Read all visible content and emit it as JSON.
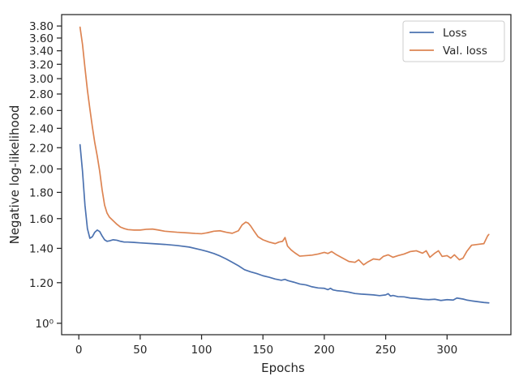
{
  "chart_data": {
    "type": "line",
    "title": "",
    "xlabel": "Epochs",
    "ylabel": "Negative log-likelihood",
    "xlim": [
      -14,
      352
    ],
    "ylim": [
      0.95,
      4.0
    ],
    "yscale": "log",
    "grid": false,
    "legend_position": "top-right",
    "x_ticks": [
      0,
      50,
      100,
      150,
      200,
      250,
      300
    ],
    "x_tick_labels": [
      "0",
      "50",
      "100",
      "150",
      "200",
      "250",
      "300"
    ],
    "y_ticks": [
      1.0,
      1.2,
      1.4,
      1.6,
      1.8,
      2.0,
      2.2,
      2.4,
      2.6,
      2.8,
      3.0,
      3.2,
      3.4,
      3.6,
      3.8
    ],
    "y_tick_labels": [
      "10⁰",
      "1.20",
      "1.40",
      "1.60",
      "1.80",
      "2.00",
      "2.20",
      "2.40",
      "2.60",
      "2.80",
      "3.00",
      "3.20",
      "3.40",
      "3.60",
      "3.80"
    ],
    "series": [
      {
        "name": "Loss",
        "color": "#4c72b0",
        "x": [
          1,
          3,
          5,
          7,
          9,
          11,
          13,
          15,
          17,
          19,
          21,
          23,
          25,
          28,
          31,
          34,
          37,
          40,
          45,
          50,
          60,
          70,
          80,
          90,
          100,
          105,
          110,
          115,
          120,
          125,
          130,
          135,
          140,
          145,
          150,
          155,
          160,
          165,
          168,
          170,
          172,
          175,
          180,
          185,
          190,
          195,
          200,
          203,
          205,
          207,
          210,
          215,
          220,
          225,
          230,
          235,
          240,
          245,
          250,
          252,
          254,
          256,
          260,
          265,
          270,
          275,
          280,
          285,
          290,
          295,
          300,
          305,
          308,
          310,
          313,
          316,
          320,
          325,
          330,
          334
        ],
        "y": [
          2.23,
          1.98,
          1.7,
          1.53,
          1.465,
          1.475,
          1.505,
          1.52,
          1.51,
          1.48,
          1.455,
          1.445,
          1.448,
          1.455,
          1.452,
          1.445,
          1.44,
          1.44,
          1.438,
          1.435,
          1.43,
          1.425,
          1.418,
          1.408,
          1.39,
          1.38,
          1.368,
          1.353,
          1.335,
          1.315,
          1.295,
          1.272,
          1.26,
          1.25,
          1.238,
          1.23,
          1.22,
          1.213,
          1.218,
          1.212,
          1.208,
          1.203,
          1.193,
          1.188,
          1.178,
          1.172,
          1.17,
          1.163,
          1.17,
          1.162,
          1.158,
          1.155,
          1.15,
          1.143,
          1.14,
          1.138,
          1.136,
          1.132,
          1.136,
          1.142,
          1.13,
          1.133,
          1.127,
          1.126,
          1.12,
          1.118,
          1.114,
          1.112,
          1.114,
          1.108,
          1.112,
          1.11,
          1.12,
          1.118,
          1.115,
          1.11,
          1.106,
          1.102,
          1.098,
          1.096
        ]
      },
      {
        "name": "Val. loss",
        "color": "#dd8452",
        "x": [
          1,
          3,
          5,
          7,
          9,
          11,
          13,
          15,
          17,
          19,
          21,
          23,
          25,
          28,
          31,
          34,
          37,
          40,
          45,
          50,
          55,
          60,
          65,
          70,
          80,
          90,
          95,
          100,
          105,
          110,
          115,
          120,
          125,
          130,
          133,
          136,
          138,
          140,
          143,
          146,
          150,
          155,
          160,
          163,
          166,
          168,
          170,
          173,
          176,
          180,
          185,
          190,
          195,
          200,
          203,
          206,
          210,
          215,
          220,
          225,
          228,
          232,
          235,
          240,
          245,
          248,
          252,
          256,
          260,
          265,
          270,
          275,
          280,
          283,
          286,
          290,
          293,
          296,
          300,
          303,
          306,
          310,
          313,
          316,
          320,
          325,
          330,
          333,
          334
        ],
        "y": [
          3.78,
          3.5,
          3.15,
          2.85,
          2.62,
          2.42,
          2.25,
          2.12,
          1.98,
          1.82,
          1.7,
          1.64,
          1.61,
          1.585,
          1.56,
          1.54,
          1.53,
          1.523,
          1.52,
          1.52,
          1.525,
          1.527,
          1.52,
          1.512,
          1.505,
          1.5,
          1.497,
          1.495,
          1.502,
          1.512,
          1.515,
          1.505,
          1.498,
          1.515,
          1.555,
          1.575,
          1.568,
          1.548,
          1.51,
          1.475,
          1.455,
          1.44,
          1.43,
          1.44,
          1.445,
          1.47,
          1.415,
          1.39,
          1.372,
          1.352,
          1.355,
          1.358,
          1.365,
          1.375,
          1.368,
          1.38,
          1.36,
          1.34,
          1.32,
          1.315,
          1.33,
          1.3,
          1.315,
          1.335,
          1.33,
          1.35,
          1.36,
          1.345,
          1.355,
          1.365,
          1.38,
          1.385,
          1.37,
          1.385,
          1.345,
          1.37,
          1.385,
          1.35,
          1.355,
          1.34,
          1.36,
          1.33,
          1.34,
          1.38,
          1.42,
          1.425,
          1.43,
          1.48,
          1.49
        ]
      }
    ]
  }
}
